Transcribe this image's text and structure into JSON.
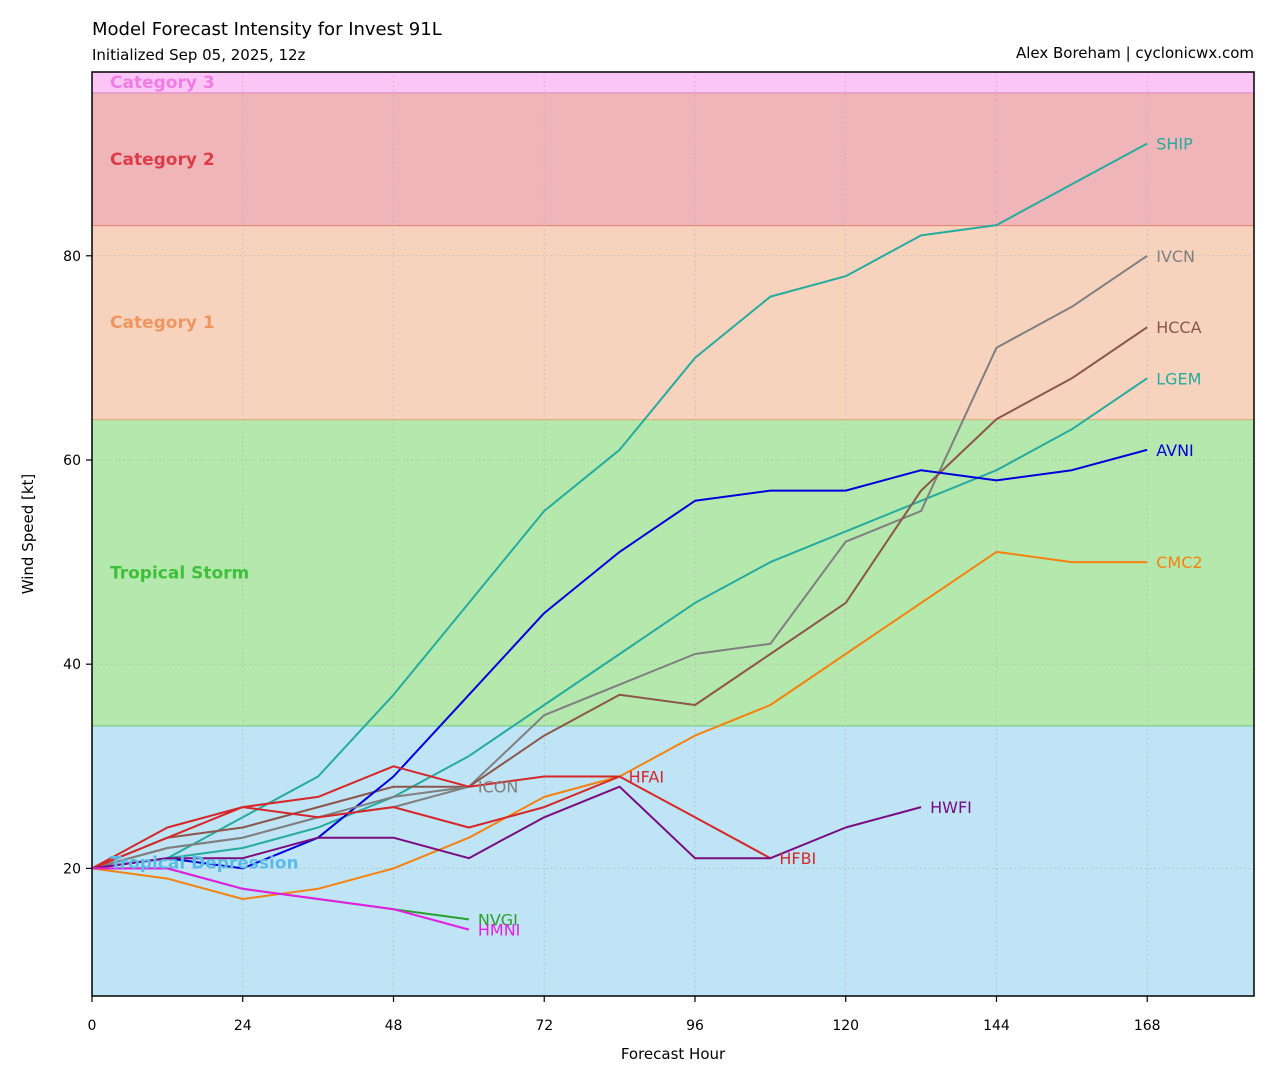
{
  "header": {
    "title": "Model Forecast Intensity for Invest 91L",
    "subtitle": "Initialized Sep 05, 2025, 12z",
    "credit": "Alex Boreham | cyclonicwx.com"
  },
  "chart_data": {
    "type": "line",
    "title": "Model Forecast Intensity for Invest 91L",
    "xlabel": "Forecast Hour",
    "ylabel": "Wind Speed [kt]",
    "xlim": [
      0,
      185
    ],
    "ylim": [
      7.5,
      98
    ],
    "xticks": [
      0,
      24,
      48,
      72,
      96,
      120,
      144,
      168
    ],
    "yticks": [
      20,
      40,
      60,
      80
    ],
    "grid": true,
    "bands": [
      {
        "name": "Tropical Depression",
        "from": 7.5,
        "to": 34,
        "fill": "#bee4f6",
        "edge": "#66cc77",
        "text": "#5bbbe8"
      },
      {
        "name": "Tropical Storm",
        "from": 34,
        "to": 64,
        "fill": "#b5e8ad",
        "edge": "#dcaa74",
        "text": "#3fc03a"
      },
      {
        "name": "Category 1",
        "from": 64,
        "to": 83,
        "fill": "#f7d3be",
        "edge": "#e57c70",
        "text": "#ef9560"
      },
      {
        "name": "Category 2",
        "from": 83,
        "to": 96,
        "fill": "#efb5b8",
        "edge": "#e080c0",
        "text": "#de3c48"
      },
      {
        "name": "Category 3",
        "from": 96,
        "to": 98,
        "fill": "#fbc6f6",
        "edge": "#f080e8",
        "text": "#f07ce6"
      }
    ],
    "series": [
      {
        "name": "SHIP",
        "color": "#26ab9e",
        "x": [
          0,
          12,
          24,
          36,
          48,
          60,
          72,
          84,
          96,
          108,
          120,
          132,
          144,
          156,
          168
        ],
        "y": [
          20,
          21,
          25,
          29,
          37,
          46,
          55,
          61,
          70,
          76,
          78,
          82,
          83,
          87,
          91
        ]
      },
      {
        "name": "LGEM",
        "color": "#26ab9e",
        "x": [
          0,
          12,
          24,
          36,
          48,
          60,
          72,
          84,
          96,
          108,
          120,
          132,
          144,
          156,
          168
        ],
        "y": [
          20,
          21,
          22,
          24,
          27,
          31,
          36,
          41,
          46,
          50,
          53,
          56,
          59,
          63,
          68
        ]
      },
      {
        "name": "IVCN",
        "color": "#7f7f7f",
        "x": [
          0,
          12,
          24,
          36,
          48,
          60,
          72,
          84,
          96,
          108,
          120,
          132,
          144,
          156,
          168
        ],
        "y": [
          20,
          22,
          23,
          25,
          26,
          28,
          35,
          38,
          41,
          42,
          52,
          55,
          71,
          75,
          80
        ]
      },
      {
        "name": "HCCA",
        "color": "#8c564b",
        "x": [
          0,
          12,
          24,
          36,
          48,
          60,
          72,
          84,
          96,
          108,
          120,
          132,
          144,
          156,
          168
        ],
        "y": [
          20,
          23,
          24,
          26,
          28,
          28,
          33,
          37,
          36,
          41,
          46,
          57,
          64,
          68,
          73
        ]
      },
      {
        "name": "AVNI",
        "color": "#0000dd",
        "x": [
          0,
          12,
          24,
          36,
          48,
          60,
          72,
          84,
          96,
          108,
          120,
          132,
          144,
          156,
          168
        ],
        "y": [
          20,
          21,
          20,
          23,
          29,
          37,
          45,
          51,
          56,
          57,
          57,
          59,
          58,
          59,
          61
        ]
      },
      {
        "name": "CMC2",
        "color": "#f5820e",
        "x": [
          0,
          12,
          24,
          36,
          48,
          60,
          72,
          84,
          96,
          108,
          120,
          132,
          144,
          156,
          168
        ],
        "y": [
          20,
          19,
          17,
          18,
          20,
          23,
          27,
          29,
          33,
          36,
          41,
          46,
          51,
          50,
          50
        ]
      },
      {
        "name": "ICON",
        "color": "#7f7f7f",
        "x": [
          0,
          12,
          24,
          36,
          48,
          60
        ],
        "y": [
          20,
          22,
          23,
          25,
          27,
          28
        ]
      },
      {
        "name": "HFAI",
        "color": "#d62728",
        "x": [
          0,
          12,
          24,
          36,
          48,
          60,
          72,
          84
        ],
        "y": [
          20,
          24,
          26,
          27,
          30,
          28,
          29,
          29
        ]
      },
      {
        "name": "HFBI",
        "color": "#d62728",
        "x": [
          0,
          12,
          24,
          36,
          48,
          60,
          72,
          84,
          96,
          108
        ],
        "y": [
          20,
          23,
          26,
          25,
          26,
          24,
          26,
          29,
          25,
          21
        ]
      },
      {
        "name": "HWFI",
        "color": "#7b0b80",
        "x": [
          0,
          12,
          24,
          36,
          48,
          60,
          72,
          84,
          96,
          108,
          120,
          132
        ],
        "y": [
          20,
          21,
          21,
          23,
          23,
          21,
          25,
          28,
          21,
          21,
          24,
          26
        ]
      },
      {
        "name": "NVGI",
        "color": "#2ca02c",
        "x": [
          0,
          12,
          24,
          36,
          48,
          60
        ],
        "y": [
          20,
          20,
          18,
          17,
          16,
          15
        ]
      },
      {
        "name": "HMNI",
        "color": "#e61be6",
        "x": [
          0,
          12,
          24,
          36,
          48,
          60
        ],
        "y": [
          20,
          20,
          18,
          17,
          16,
          14
        ]
      }
    ],
    "end_labels": [
      {
        "name": "SHIP",
        "color": "#26ab9e",
        "y": 91
      },
      {
        "name": "IVCN",
        "color": "#7f7f7f",
        "y": 80
      },
      {
        "name": "HCCA",
        "color": "#8c564b",
        "y": 73
      },
      {
        "name": "LGEM",
        "color": "#26ab9e",
        "y": 68
      },
      {
        "name": "AVNI",
        "color": "#0000dd",
        "y": 61
      },
      {
        "name": "CMC2",
        "color": "#f5820e",
        "y": 50
      },
      {
        "name": "ICON",
        "color": "#7f7f7f",
        "y": 28
      },
      {
        "name": "HFAI",
        "color": "#d62728",
        "y": 29
      },
      {
        "name": "HFBI",
        "color": "#d62728",
        "y": 21
      },
      {
        "name": "HWFI",
        "color": "#7b0b80",
        "y": 26
      },
      {
        "name": "NVGI",
        "color": "#2ca02c",
        "y": 15
      },
      {
        "name": "HMNI",
        "color": "#e61be6",
        "y": 14
      }
    ]
  }
}
